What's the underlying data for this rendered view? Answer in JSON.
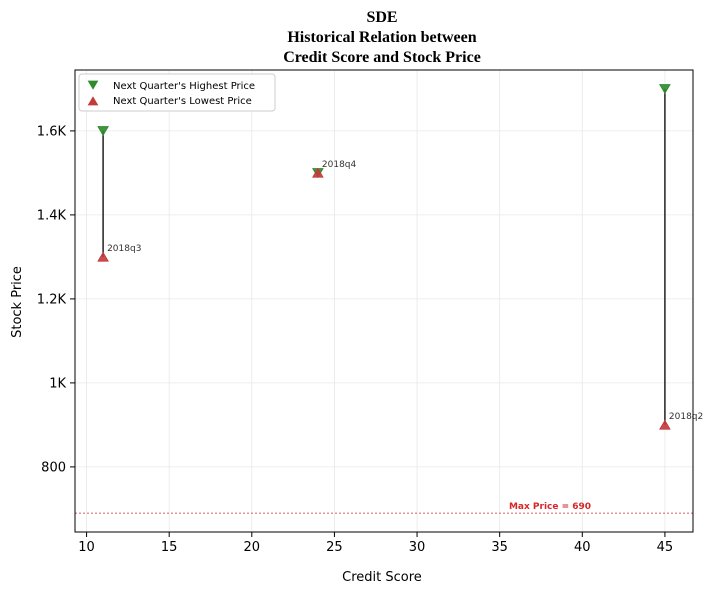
{
  "chart_data": {
    "type": "scatter",
    "title_lines": [
      "SDE",
      "Historical Relation between",
      "Credit Score and Stock Price"
    ],
    "xlabel": "Credit Score",
    "ylabel": "Stock Price",
    "xlim": [
      9.3,
      46.7
    ],
    "ylim": [
      645,
      1745
    ],
    "xticks": [
      10,
      15,
      20,
      25,
      30,
      35,
      40,
      45
    ],
    "xtick_labels": [
      "10",
      "15",
      "20",
      "25",
      "30",
      "35",
      "40",
      "45"
    ],
    "yticks": [
      800,
      1000,
      1200,
      1400,
      1600
    ],
    "ytick_labels": [
      "800",
      "1K",
      "1.2K",
      "1.4K",
      "1.6K"
    ],
    "grid": true,
    "legend_position": "top-left",
    "series": [
      {
        "name": "Next Quarter's Highest Price",
        "marker": "triangle-down",
        "color": "#2e8b2e"
      },
      {
        "name": "Next Quarter's Lowest Price",
        "marker": "triangle-up",
        "color": "#c23b3b"
      }
    ],
    "points": [
      {
        "label": "2018q3",
        "x": 11,
        "high": 1600,
        "low": 1300
      },
      {
        "label": "2018q4",
        "x": 24,
        "high": 1500,
        "low": 1500
      },
      {
        "label": "2018q2",
        "x": 45,
        "high": 1700,
        "low": 900
      }
    ],
    "reference_line": {
      "y": 690,
      "label": "Max Price = 690",
      "color": "#d62728"
    }
  }
}
